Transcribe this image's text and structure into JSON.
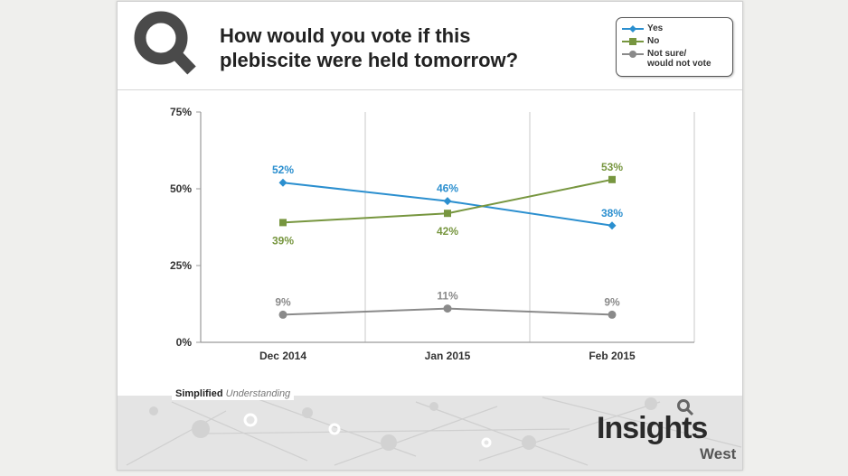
{
  "header": {
    "title_line1": "How would you vote if this",
    "title_line2": "plebiscite were held tomorrow?"
  },
  "legend": {
    "items": [
      {
        "label_line1": "Yes",
        "label_line2": "",
        "marker": "diamond",
        "color": "#2b8fcf"
      },
      {
        "label_line1": "No",
        "label_line2": "",
        "marker": "square",
        "color": "#77963f"
      },
      {
        "label_line1": "Not sure/",
        "label_line2": "would not vote",
        "marker": "circle",
        "color": "#8a8a8a"
      }
    ]
  },
  "chart_data": {
    "type": "line",
    "categories": [
      "Dec 2014",
      "Jan 2015",
      "Feb 2015"
    ],
    "ylim": [
      0,
      75
    ],
    "yticks": [
      0,
      25,
      50,
      75
    ],
    "ytick_labels": [
      "0%",
      "25%",
      "50%",
      "75%"
    ],
    "grid": "vertical",
    "series": [
      {
        "name": "Yes",
        "values": [
          52,
          46,
          38
        ],
        "labels": [
          "52%",
          "46%",
          "38%"
        ],
        "label_pos": [
          "above",
          "above",
          "above"
        ],
        "color": "#2b8fcf",
        "marker": "diamond"
      },
      {
        "name": "No",
        "values": [
          39,
          42,
          53
        ],
        "labels": [
          "39%",
          "42%",
          "53%"
        ],
        "label_pos": [
          "below",
          "below",
          "above"
        ],
        "color": "#77963f",
        "marker": "square"
      },
      {
        "name": "Not sure/would not vote",
        "values": [
          9,
          11,
          9
        ],
        "labels": [
          "9%",
          "11%",
          "9%"
        ],
        "label_pos": [
          "above",
          "above",
          "above"
        ],
        "color": "#8a8a8a",
        "marker": "circle"
      }
    ]
  },
  "footer": {
    "tagline_bold": "Simplified",
    "tagline_italic": "Understanding",
    "brand_main": "Insights",
    "brand_sub": "West"
  }
}
